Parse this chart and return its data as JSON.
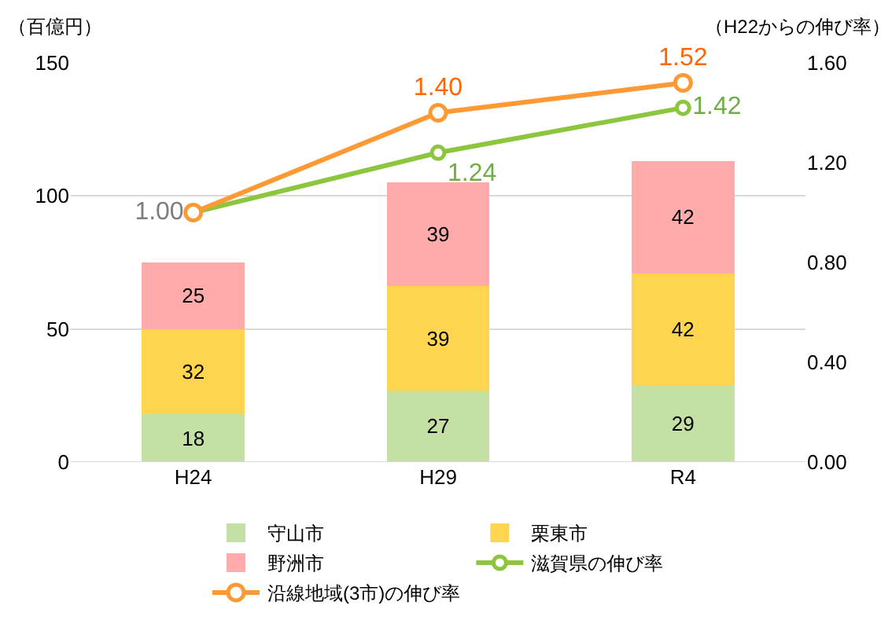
{
  "chart_data": {
    "type": "bar",
    "stacked": true,
    "ylabel": "（百億円）",
    "y2label": "（H22からの伸び率）",
    "categories": [
      "H24",
      "H29",
      "R4"
    ],
    "series": [
      {
        "name": "守山市",
        "color": "#c5e0a5",
        "values": [
          18,
          27,
          29
        ],
        "value_labels": [
          "18",
          "27",
          "29"
        ]
      },
      {
        "name": "栗東市",
        "color": "#ffd54f",
        "values": [
          32,
          39,
          42
        ],
        "value_labels": [
          "32",
          "39",
          "42"
        ]
      },
      {
        "name": "野洲市",
        "color": "#ffabab",
        "values": [
          25,
          39,
          42
        ],
        "value_labels": [
          "25",
          "39",
          "42"
        ]
      },
      {
        "name": "滋賀県の伸び率",
        "type": "line",
        "axis": "y2",
        "color": "#8cc63f",
        "values": [
          1.0,
          1.24,
          1.42
        ],
        "value_labels": [
          "1.00",
          "1.24",
          "1.42"
        ]
      },
      {
        "name": "沿線地域(3市)の伸び率",
        "type": "line",
        "axis": "y2",
        "color": "#ff9933",
        "values": [
          1.0,
          1.4,
          1.52
        ],
        "value_labels": [
          null,
          "1.40",
          "1.52"
        ]
      }
    ],
    "ylim": [
      0,
      150
    ],
    "yticks": [
      0,
      50,
      100,
      150
    ],
    "y2lim": [
      0,
      1.6
    ],
    "y2ticks": [
      {
        "value": 0,
        "label": "0.00"
      },
      {
        "value": 0.4,
        "label": "0.40"
      },
      {
        "value": 0.8,
        "label": "0.80"
      },
      {
        "value": 1.2,
        "label": "1.20"
      },
      {
        "value": 1.6,
        "label": "1.60"
      }
    ],
    "grid": "y",
    "legend": "bottom",
    "marker": "circle"
  }
}
